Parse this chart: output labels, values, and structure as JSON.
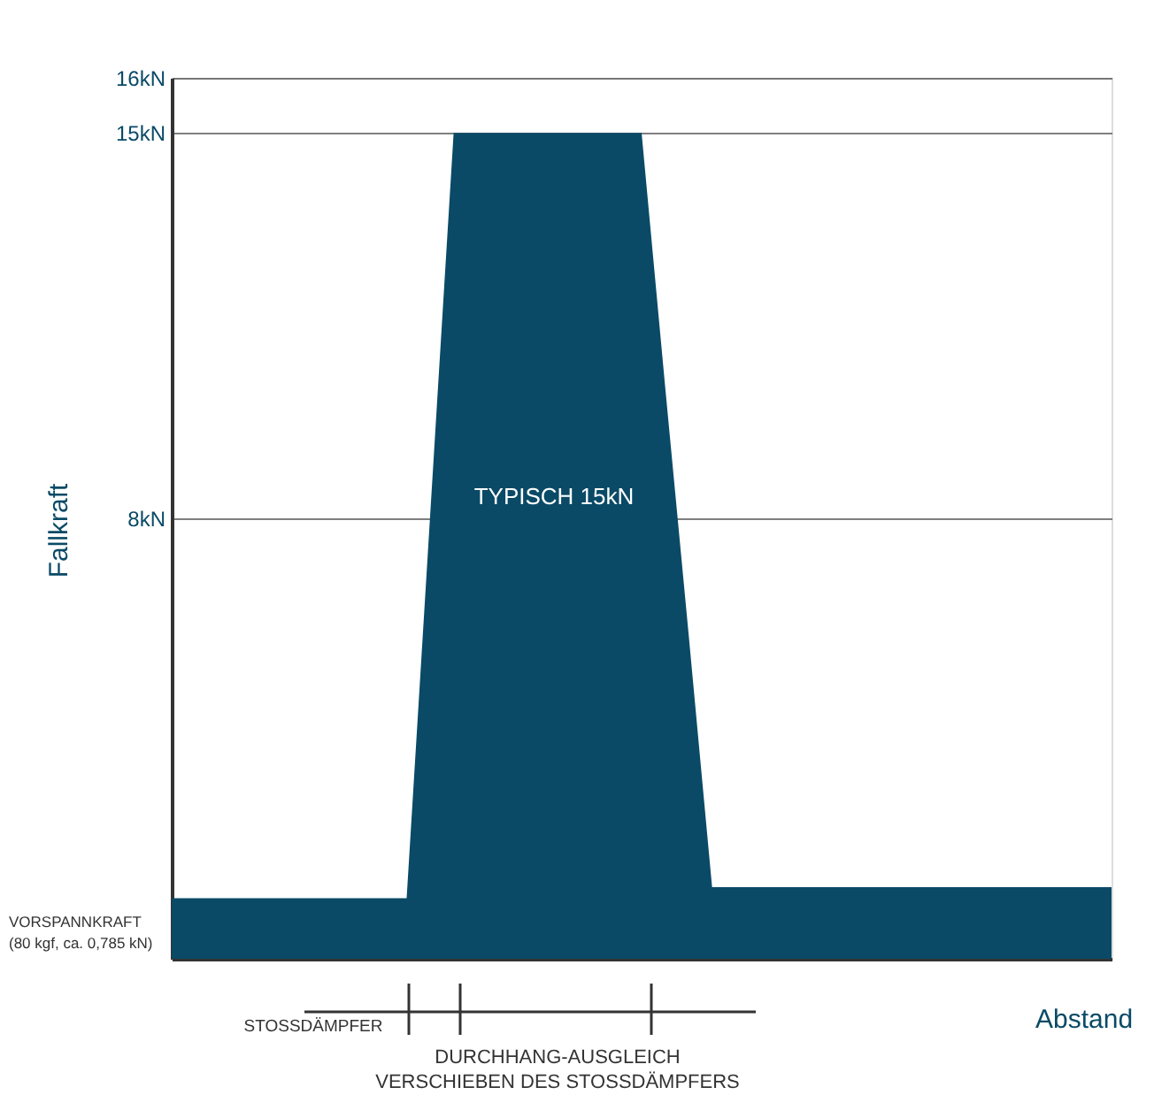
{
  "chart_data": {
    "type": "area",
    "ylabel": "Fallkraft",
    "xlabel": "Abstand",
    "categories": [
      null,
      null,
      null,
      null,
      null,
      null,
      null,
      null,
      null,
      null,
      null,
      null,
      null,
      null,
      null,
      null,
      null,
      null,
      null,
      null,
      null,
      null,
      null,
      null,
      null,
      null,
      null,
      null,
      null,
      null,
      null,
      null,
      null,
      null,
      null,
      null,
      null,
      null,
      null,
      null,
      null
    ],
    "series": [
      {
        "color": "#0a4a66",
        "values": [
          1.1,
          1.1,
          1.1,
          1.1,
          1.1,
          1.1,
          1.1,
          1.1,
          1.1,
          1.1,
          1.1,
          8.05,
          15,
          15,
          15,
          15,
          15,
          15,
          15,
          15,
          15,
          10.4,
          5.9,
          1.3,
          1.3,
          1.3,
          1.3,
          1.3,
          1.3,
          1.3,
          1.3,
          1.3,
          1.3,
          1.3,
          1.3,
          1.3,
          1.3,
          1.3,
          1.3,
          1.3,
          1.3
        ]
      }
    ],
    "ylim": [
      0,
      16
    ],
    "yticks": [
      {
        "value": 8,
        "label": "8kN"
      },
      {
        "value": 15,
        "label": "15kN"
      },
      {
        "value": 16,
        "label": "16kN"
      }
    ],
    "tick_labels": "y",
    "grid": "y",
    "annotations": [
      "VORSPANNKRAFT\n(80 kgf, ca. 0,785 kN)",
      "TYPISCH 15kN",
      "STOSSDÄMPFER",
      "DURCHHANG-AUSGLEICH",
      "VERSCHIEBEN DES STOSSDÄMPFERS"
    ]
  }
}
